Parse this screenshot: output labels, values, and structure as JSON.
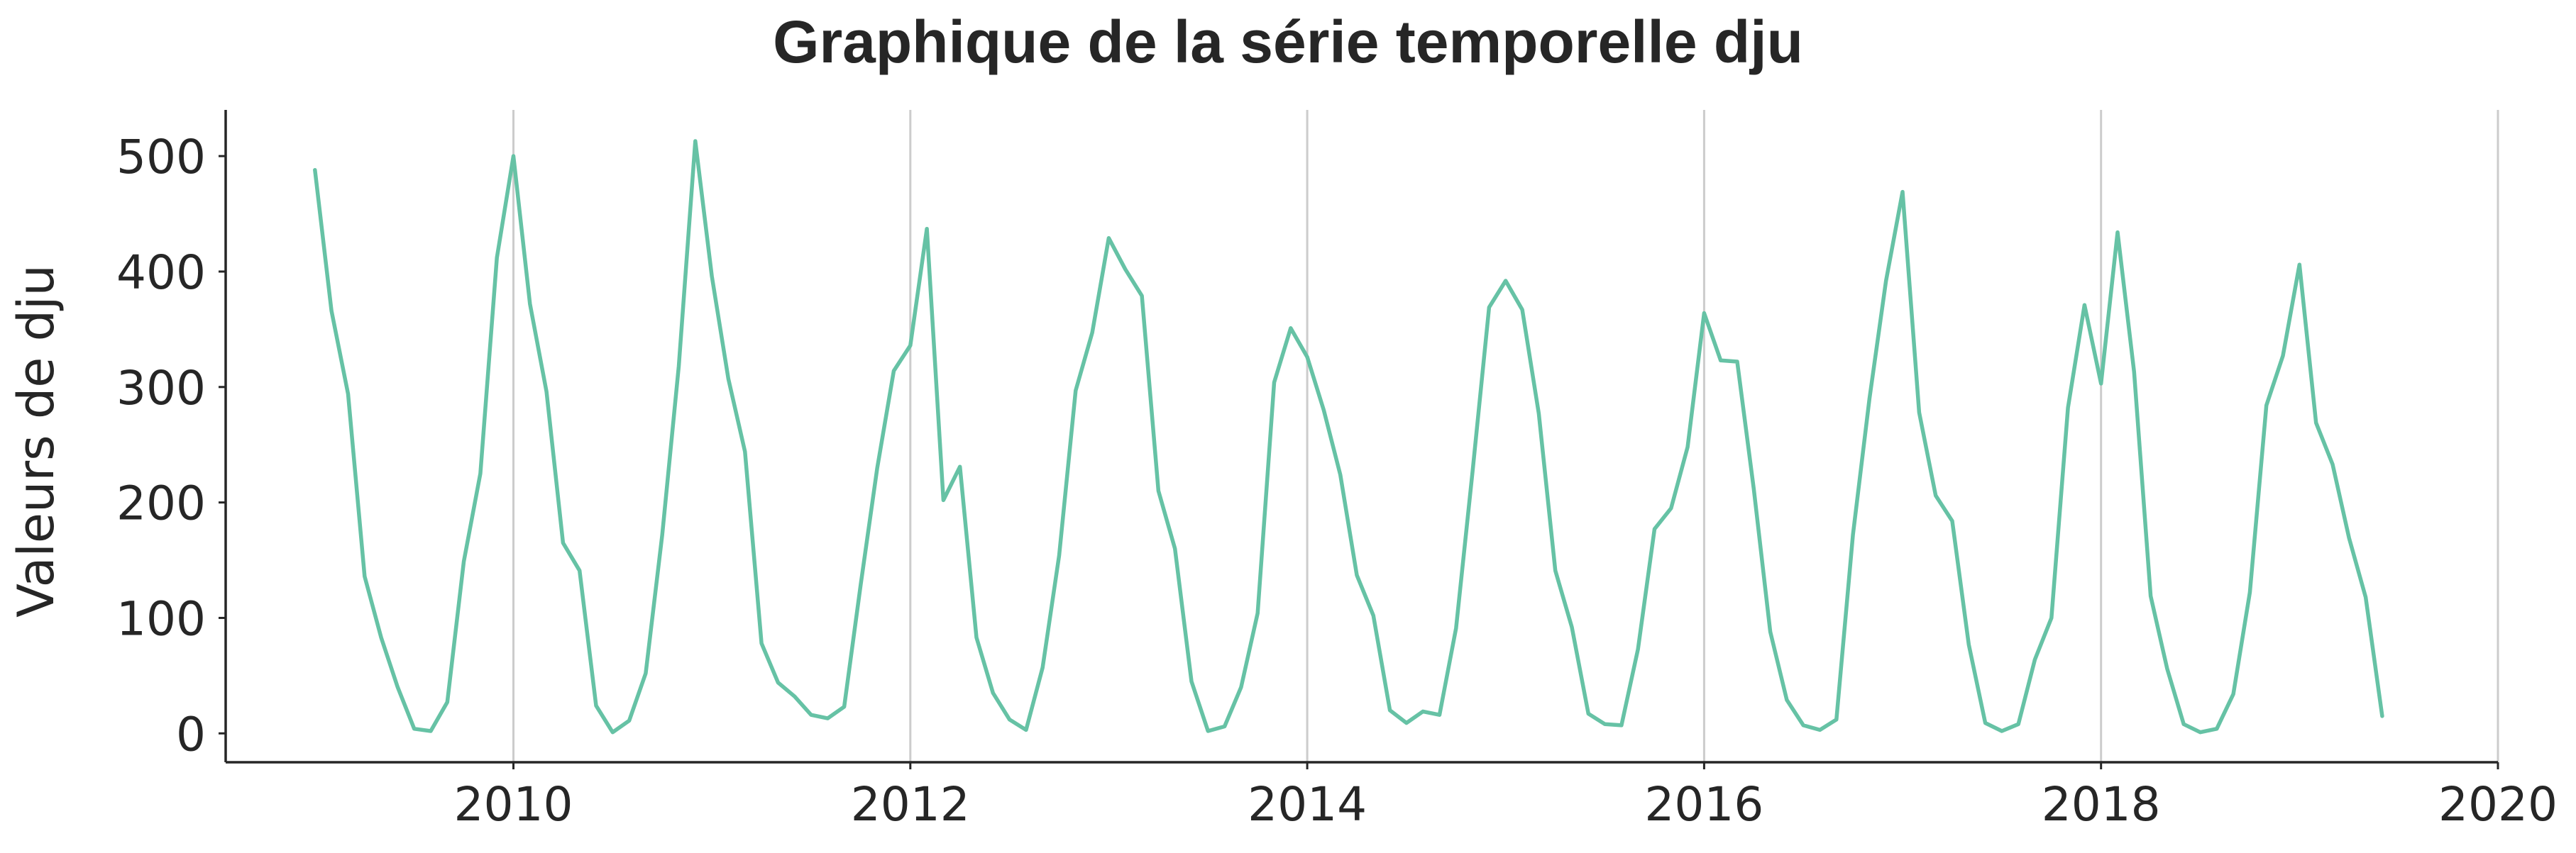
{
  "chart_data": {
    "type": "line",
    "title": "Graphique de la série temporelle dju",
    "xlabel": "",
    "ylabel": "Valeurs de dju",
    "xlim": [
      2008.55,
      2020.0
    ],
    "ylim": [
      -25,
      540
    ],
    "x_ticks": [
      2010,
      2012,
      2014,
      2016,
      2018,
      2020
    ],
    "x_tick_labels": [
      "2010",
      "2012",
      "2014",
      "2016",
      "2018",
      "2020"
    ],
    "y_ticks": [
      0,
      100,
      200,
      300,
      400,
      500
    ],
    "y_tick_labels": [
      "0",
      "100",
      "200",
      "300",
      "400",
      "500"
    ],
    "grid": "vertical",
    "legend": "none",
    "series": [
      {
        "name": "dju",
        "color": "#66c2a5",
        "start_year": 2009,
        "start_month": 1,
        "frequency": "monthly",
        "values": [
          488,
          366,
          294,
          136,
          83,
          40,
          4,
          2,
          27,
          149,
          225,
          412,
          500,
          372,
          296,
          165,
          141,
          24,
          1,
          11,
          52,
          172,
          318,
          513,
          396,
          307,
          244,
          78,
          44,
          32,
          16,
          13,
          23,
          129,
          230,
          314,
          336,
          437,
          202,
          231,
          83,
          35,
          12,
          3,
          57,
          154,
          297,
          347,
          429,
          402,
          379,
          210,
          160,
          45,
          2,
          6,
          40,
          104,
          304,
          351,
          326,
          280,
          224,
          137,
          102,
          20,
          9,
          19,
          16,
          91,
          227,
          369,
          392,
          367,
          277,
          141,
          92,
          17,
          8,
          7,
          73,
          177,
          195,
          248,
          364,
          323,
          322,
          212,
          88,
          29,
          7,
          3,
          12,
          172,
          290,
          392,
          469,
          278,
          206,
          184,
          77,
          9,
          2,
          8,
          64,
          100,
          282,
          371,
          303,
          434,
          313,
          119,
          56,
          8,
          1,
          4,
          34,
          122,
          284,
          327,
          406,
          269,
          233,
          169,
          118,
          15
        ]
      }
    ]
  }
}
